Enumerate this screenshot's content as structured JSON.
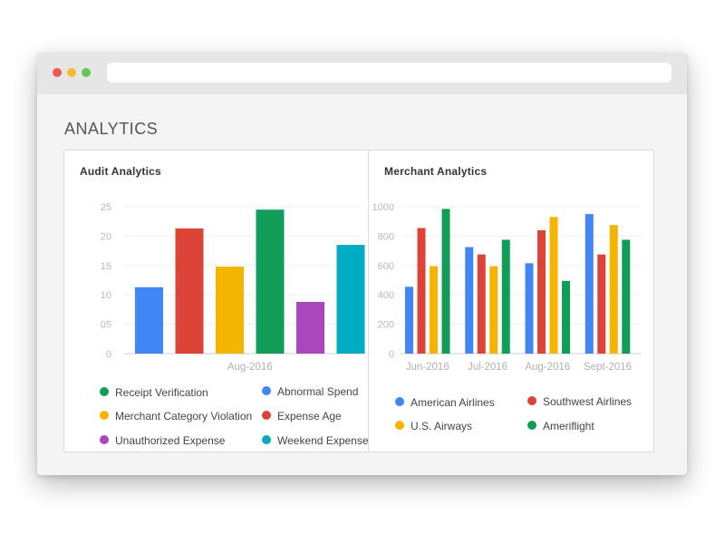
{
  "page": {
    "title": "ANALYTICS"
  },
  "window": {
    "controls": [
      "close",
      "minimize",
      "maximize"
    ],
    "address_bar": ""
  },
  "audit": {
    "title": "Audit Analytics",
    "legend": [
      {
        "label": "Receipt Verification",
        "color": "#0f9d58"
      },
      {
        "label": "Abnormal Spend",
        "color": "#4285f4"
      },
      {
        "label": "Merchant Category Violation",
        "color": "#f4b400"
      },
      {
        "label": "Expense Age",
        "color": "#db4437"
      },
      {
        "label": "Unauthorized Expense",
        "color": "#ab47bc"
      },
      {
        "label": "Weekend Expense",
        "color": "#00acc1"
      }
    ]
  },
  "merchant": {
    "title": "Merchant Analytics",
    "legend": [
      {
        "label": "American Airlines",
        "color": "#4285f4"
      },
      {
        "label": "Southwest Airlines",
        "color": "#db4437"
      },
      {
        "label": "U.S. Airways",
        "color": "#f4b400"
      },
      {
        "label": "Ameriflight",
        "color": "#0f9d58"
      }
    ]
  },
  "chart_data": [
    {
      "type": "bar",
      "title": "Audit Analytics",
      "categories": [
        "Aug-2016"
      ],
      "ytick_labels": [
        "0",
        "05",
        "10",
        "15",
        "20",
        "25"
      ],
      "ylim": [
        0,
        25
      ],
      "grid": true,
      "legend_position": "bottom",
      "series": [
        {
          "name": "Abnormal Spend",
          "color": "#4285f4",
          "values": [
            11.3
          ]
        },
        {
          "name": "Expense Age",
          "color": "#db4437",
          "values": [
            21.3
          ]
        },
        {
          "name": "Merchant Category Violation",
          "color": "#f4b400",
          "values": [
            14.8
          ]
        },
        {
          "name": "Receipt Verification",
          "color": "#0f9d58",
          "values": [
            24.5
          ]
        },
        {
          "name": "Unauthorized Expense",
          "color": "#ab47bc",
          "values": [
            8.8
          ]
        },
        {
          "name": "Weekend Expense",
          "color": "#00acc1",
          "values": [
            18.5
          ]
        }
      ]
    },
    {
      "type": "bar",
      "title": "Merchant Analytics",
      "categories": [
        "Jun-2016",
        "Jul-2016",
        "Aug-2016",
        "Sept-2016"
      ],
      "ytick_labels": [
        "0",
        "200",
        "400",
        "600",
        "800",
        "1000"
      ],
      "ylim": [
        0,
        1000
      ],
      "grid": true,
      "legend_position": "bottom",
      "series": [
        {
          "name": "American Airlines",
          "color": "#4285f4",
          "values": [
            455,
            725,
            615,
            950
          ]
        },
        {
          "name": "Southwest Airlines",
          "color": "#db4437",
          "values": [
            855,
            675,
            840,
            675
          ]
        },
        {
          "name": "U.S. Airways",
          "color": "#f4b400",
          "values": [
            595,
            595,
            930,
            875
          ]
        },
        {
          "name": "Ameriflight",
          "color": "#0f9d58",
          "values": [
            985,
            775,
            495,
            775
          ]
        }
      ]
    }
  ]
}
